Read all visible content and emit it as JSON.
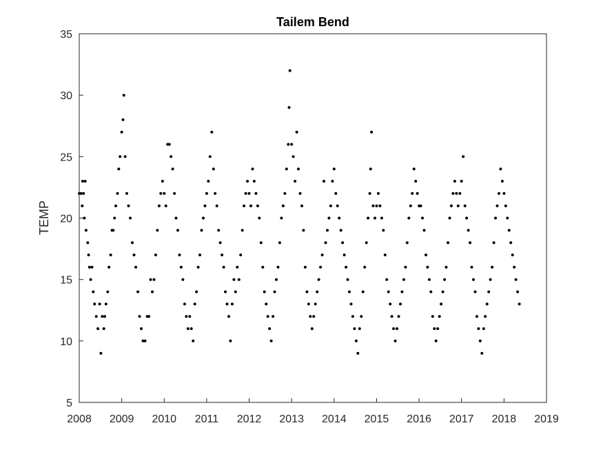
{
  "chart_data": {
    "type": "scatter",
    "title": "Tailem Bend",
    "xlabel": "",
    "ylabel": "TEMP",
    "xlim": [
      2008,
      2019
    ],
    "ylim": [
      5,
      35
    ],
    "x_ticks": [
      2008,
      2009,
      2010,
      2011,
      2012,
      2013,
      2014,
      2015,
      2016,
      2017,
      2018,
      2019
    ],
    "y_ticks": [
      5,
      10,
      15,
      20,
      25,
      30,
      35
    ],
    "grid": false,
    "legend": "none",
    "marker_color": "#000000",
    "points": [
      [
        2008.0,
        22
      ],
      [
        2008.04,
        22
      ],
      [
        2008.07,
        21
      ],
      [
        2008.08,
        23
      ],
      [
        2008.1,
        22
      ],
      [
        2008.12,
        20
      ],
      [
        2008.14,
        23
      ],
      [
        2008.16,
        19
      ],
      [
        2008.2,
        18
      ],
      [
        2008.22,
        17
      ],
      [
        2008.24,
        16
      ],
      [
        2008.27,
        15
      ],
      [
        2008.3,
        16
      ],
      [
        2008.33,
        14
      ],
      [
        2008.36,
        13
      ],
      [
        2008.4,
        12
      ],
      [
        2008.44,
        11
      ],
      [
        2008.48,
        13
      ],
      [
        2008.51,
        9
      ],
      [
        2008.54,
        12
      ],
      [
        2008.58,
        11
      ],
      [
        2008.6,
        12
      ],
      [
        2008.63,
        13
      ],
      [
        2008.67,
        14
      ],
      [
        2008.7,
        16
      ],
      [
        2008.74,
        17
      ],
      [
        2008.77,
        19
      ],
      [
        2008.8,
        19
      ],
      [
        2008.83,
        20
      ],
      [
        2008.86,
        21
      ],
      [
        2008.9,
        22
      ],
      [
        2008.93,
        24
      ],
      [
        2008.96,
        25
      ],
      [
        2009.0,
        27
      ],
      [
        2009.03,
        28
      ],
      [
        2009.05,
        30
      ],
      [
        2009.08,
        25
      ],
      [
        2009.12,
        22
      ],
      [
        2009.16,
        21
      ],
      [
        2009.2,
        20
      ],
      [
        2009.25,
        18
      ],
      [
        2009.29,
        17
      ],
      [
        2009.33,
        16
      ],
      [
        2009.38,
        14
      ],
      [
        2009.42,
        12
      ],
      [
        2009.46,
        11
      ],
      [
        2009.5,
        10
      ],
      [
        2009.55,
        10
      ],
      [
        2009.6,
        12
      ],
      [
        2009.64,
        12
      ],
      [
        2009.68,
        15
      ],
      [
        2009.72,
        14
      ],
      [
        2009.76,
        15
      ],
      [
        2009.8,
        17
      ],
      [
        2009.84,
        19
      ],
      [
        2009.88,
        21
      ],
      [
        2009.92,
        22
      ],
      [
        2009.96,
        23
      ],
      [
        2010.0,
        22
      ],
      [
        2010.04,
        21
      ],
      [
        2010.08,
        26
      ],
      [
        2010.12,
        26
      ],
      [
        2010.16,
        25
      ],
      [
        2010.2,
        24
      ],
      [
        2010.24,
        22
      ],
      [
        2010.28,
        20
      ],
      [
        2010.32,
        19
      ],
      [
        2010.36,
        17
      ],
      [
        2010.4,
        16
      ],
      [
        2010.44,
        15
      ],
      [
        2010.48,
        13
      ],
      [
        2010.52,
        12
      ],
      [
        2010.56,
        11
      ],
      [
        2010.6,
        12
      ],
      [
        2010.64,
        11
      ],
      [
        2010.68,
        10
      ],
      [
        2010.72,
        13
      ],
      [
        2010.76,
        14
      ],
      [
        2010.8,
        16
      ],
      [
        2010.84,
        17
      ],
      [
        2010.88,
        19
      ],
      [
        2010.92,
        20
      ],
      [
        2010.96,
        21
      ],
      [
        2011.0,
        22
      ],
      [
        2011.04,
        23
      ],
      [
        2011.08,
        25
      ],
      [
        2011.12,
        27
      ],
      [
        2011.16,
        24
      ],
      [
        2011.2,
        22
      ],
      [
        2011.24,
        21
      ],
      [
        2011.28,
        19
      ],
      [
        2011.32,
        18
      ],
      [
        2011.36,
        17
      ],
      [
        2011.4,
        16
      ],
      [
        2011.44,
        14
      ],
      [
        2011.48,
        13
      ],
      [
        2011.52,
        12
      ],
      [
        2011.56,
        10
      ],
      [
        2011.6,
        13
      ],
      [
        2011.64,
        15
      ],
      [
        2011.68,
        14
      ],
      [
        2011.72,
        16
      ],
      [
        2011.76,
        15
      ],
      [
        2011.8,
        17
      ],
      [
        2011.84,
        19
      ],
      [
        2011.88,
        21
      ],
      [
        2011.92,
        22
      ],
      [
        2011.96,
        23
      ],
      [
        2012.0,
        22
      ],
      [
        2012.04,
        21
      ],
      [
        2012.08,
        24
      ],
      [
        2012.12,
        23
      ],
      [
        2012.16,
        22
      ],
      [
        2012.2,
        21
      ],
      [
        2012.24,
        20
      ],
      [
        2012.28,
        18
      ],
      [
        2012.32,
        16
      ],
      [
        2012.36,
        14
      ],
      [
        2012.4,
        13
      ],
      [
        2012.44,
        12
      ],
      [
        2012.48,
        11
      ],
      [
        2012.52,
        10
      ],
      [
        2012.56,
        12
      ],
      [
        2012.6,
        14
      ],
      [
        2012.64,
        15
      ],
      [
        2012.68,
        16
      ],
      [
        2012.72,
        18
      ],
      [
        2012.76,
        20
      ],
      [
        2012.8,
        21
      ],
      [
        2012.84,
        22
      ],
      [
        2012.88,
        24
      ],
      [
        2012.92,
        26
      ],
      [
        2012.94,
        29
      ],
      [
        2012.96,
        32
      ],
      [
        2013.0,
        26
      ],
      [
        2013.04,
        25
      ],
      [
        2013.08,
        23
      ],
      [
        2013.12,
        27
      ],
      [
        2013.16,
        24
      ],
      [
        2013.2,
        22
      ],
      [
        2013.24,
        21
      ],
      [
        2013.28,
        19
      ],
      [
        2013.32,
        16
      ],
      [
        2013.36,
        14
      ],
      [
        2013.4,
        13
      ],
      [
        2013.44,
        12
      ],
      [
        2013.48,
        11
      ],
      [
        2013.52,
        12
      ],
      [
        2013.56,
        13
      ],
      [
        2013.6,
        14
      ],
      [
        2013.64,
        15
      ],
      [
        2013.68,
        16
      ],
      [
        2013.72,
        17
      ],
      [
        2013.76,
        23
      ],
      [
        2013.8,
        18
      ],
      [
        2013.84,
        19
      ],
      [
        2013.88,
        20
      ],
      [
        2013.92,
        21
      ],
      [
        2013.96,
        23
      ],
      [
        2014.0,
        24
      ],
      [
        2014.04,
        22
      ],
      [
        2014.08,
        21
      ],
      [
        2014.12,
        20
      ],
      [
        2014.16,
        19
      ],
      [
        2014.2,
        18
      ],
      [
        2014.24,
        17
      ],
      [
        2014.28,
        16
      ],
      [
        2014.32,
        15
      ],
      [
        2014.36,
        14
      ],
      [
        2014.4,
        13
      ],
      [
        2014.44,
        12
      ],
      [
        2014.48,
        11
      ],
      [
        2014.52,
        10
      ],
      [
        2014.56,
        9
      ],
      [
        2014.6,
        11
      ],
      [
        2014.64,
        12
      ],
      [
        2014.68,
        14
      ],
      [
        2014.72,
        16
      ],
      [
        2014.76,
        18
      ],
      [
        2014.8,
        20
      ],
      [
        2014.84,
        22
      ],
      [
        2014.86,
        24
      ],
      [
        2014.88,
        27
      ],
      [
        2014.92,
        21
      ],
      [
        2014.96,
        20
      ],
      [
        2015.0,
        21
      ],
      [
        2015.04,
        22
      ],
      [
        2015.08,
        21
      ],
      [
        2015.12,
        20
      ],
      [
        2015.16,
        19
      ],
      [
        2015.2,
        17
      ],
      [
        2015.24,
        15
      ],
      [
        2015.28,
        14
      ],
      [
        2015.32,
        13
      ],
      [
        2015.36,
        12
      ],
      [
        2015.4,
        11
      ],
      [
        2015.44,
        10
      ],
      [
        2015.48,
        11
      ],
      [
        2015.52,
        12
      ],
      [
        2015.56,
        13
      ],
      [
        2015.6,
        14
      ],
      [
        2015.64,
        15
      ],
      [
        2015.68,
        16
      ],
      [
        2015.72,
        18
      ],
      [
        2015.76,
        20
      ],
      [
        2015.8,
        21
      ],
      [
        2015.84,
        22
      ],
      [
        2015.88,
        24
      ],
      [
        2015.92,
        23
      ],
      [
        2015.96,
        22
      ],
      [
        2016.0,
        21
      ],
      [
        2016.04,
        21
      ],
      [
        2016.08,
        20
      ],
      [
        2016.12,
        19
      ],
      [
        2016.16,
        17
      ],
      [
        2016.2,
        16
      ],
      [
        2016.24,
        15
      ],
      [
        2016.28,
        14
      ],
      [
        2016.32,
        12
      ],
      [
        2016.36,
        11
      ],
      [
        2016.4,
        10
      ],
      [
        2016.44,
        11
      ],
      [
        2016.48,
        12
      ],
      [
        2016.52,
        13
      ],
      [
        2016.56,
        14
      ],
      [
        2016.6,
        15
      ],
      [
        2016.64,
        16
      ],
      [
        2016.68,
        18
      ],
      [
        2016.72,
        20
      ],
      [
        2016.76,
        21
      ],
      [
        2016.8,
        22
      ],
      [
        2016.84,
        23
      ],
      [
        2016.88,
        22
      ],
      [
        2016.92,
        21
      ],
      [
        2016.96,
        22
      ],
      [
        2017.0,
        23
      ],
      [
        2017.04,
        25
      ],
      [
        2017.08,
        21
      ],
      [
        2017.12,
        20
      ],
      [
        2017.16,
        19
      ],
      [
        2017.2,
        18
      ],
      [
        2017.24,
        16
      ],
      [
        2017.28,
        15
      ],
      [
        2017.32,
        14
      ],
      [
        2017.36,
        12
      ],
      [
        2017.4,
        11
      ],
      [
        2017.44,
        10
      ],
      [
        2017.48,
        9
      ],
      [
        2017.52,
        11
      ],
      [
        2017.56,
        12
      ],
      [
        2017.6,
        13
      ],
      [
        2017.64,
        14
      ],
      [
        2017.68,
        15
      ],
      [
        2017.72,
        16
      ],
      [
        2017.76,
        18
      ],
      [
        2017.8,
        20
      ],
      [
        2017.84,
        21
      ],
      [
        2017.88,
        22
      ],
      [
        2017.92,
        24
      ],
      [
        2017.96,
        23
      ],
      [
        2018.0,
        22
      ],
      [
        2018.04,
        21
      ],
      [
        2018.08,
        20
      ],
      [
        2018.12,
        19
      ],
      [
        2018.16,
        18
      ],
      [
        2018.2,
        17
      ],
      [
        2018.24,
        16
      ],
      [
        2018.28,
        15
      ],
      [
        2018.32,
        14
      ],
      [
        2018.36,
        13
      ]
    ]
  }
}
